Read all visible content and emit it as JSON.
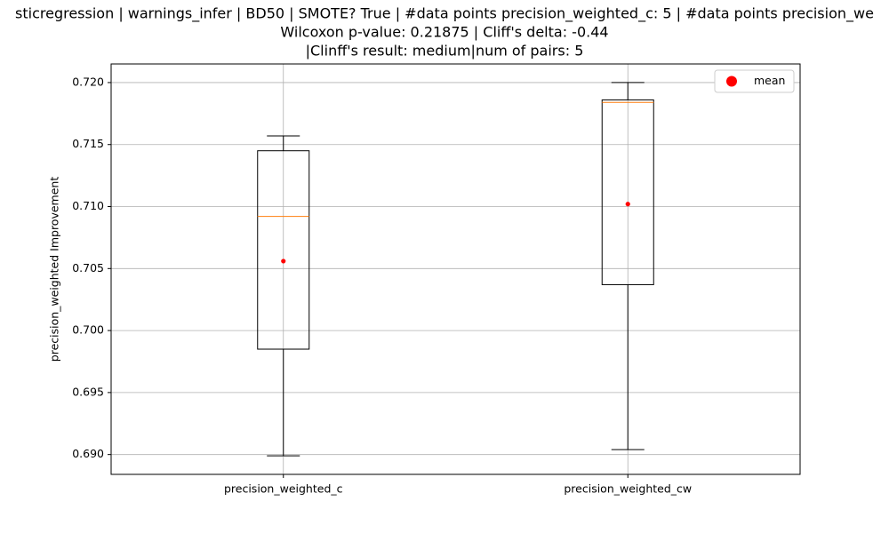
{
  "chart_data": {
    "type": "boxplot",
    "title_lines": [
      "sticregression | warnings_infer | BD50 | SMOTE? True | #data points precision_weighted_c: 5 | #data points precision_we",
      "Wilcoxon p-value: 0.21875 | Cliff's delta: -0.44",
      "|Clinff's result: medium|num of pairs: 5"
    ],
    "y_label": "precision_weighted Improvement",
    "categories": [
      "precision_weighted_c",
      "precision_weighted_cw"
    ],
    "whisker_low": [
      0.6899,
      0.6904
    ],
    "q1": [
      0.6985,
      0.7037
    ],
    "median": [
      0.7092,
      0.7184
    ],
    "q3": [
      0.7145,
      0.7186
    ],
    "whisker_high": [
      0.7157,
      0.72
    ],
    "mean": {
      "name": "mean",
      "color": "#ff0000",
      "values": [
        0.7056,
        0.7102
      ]
    },
    "box_color": "#000000",
    "median_color": "#ff7f0e",
    "ylim": [
      0.6884,
      0.7215
    ],
    "yticks": [
      {
        "value": 0.69,
        "label": "0.690"
      },
      0.695,
      {
        "value": 0.7,
        "label": "0.700"
      },
      0.705,
      {
        "value": 0.71,
        "label": "0.710"
      },
      0.715,
      {
        "value": 0.72,
        "label": "0.720"
      }
    ],
    "grid": true,
    "legend": "upper right"
  }
}
